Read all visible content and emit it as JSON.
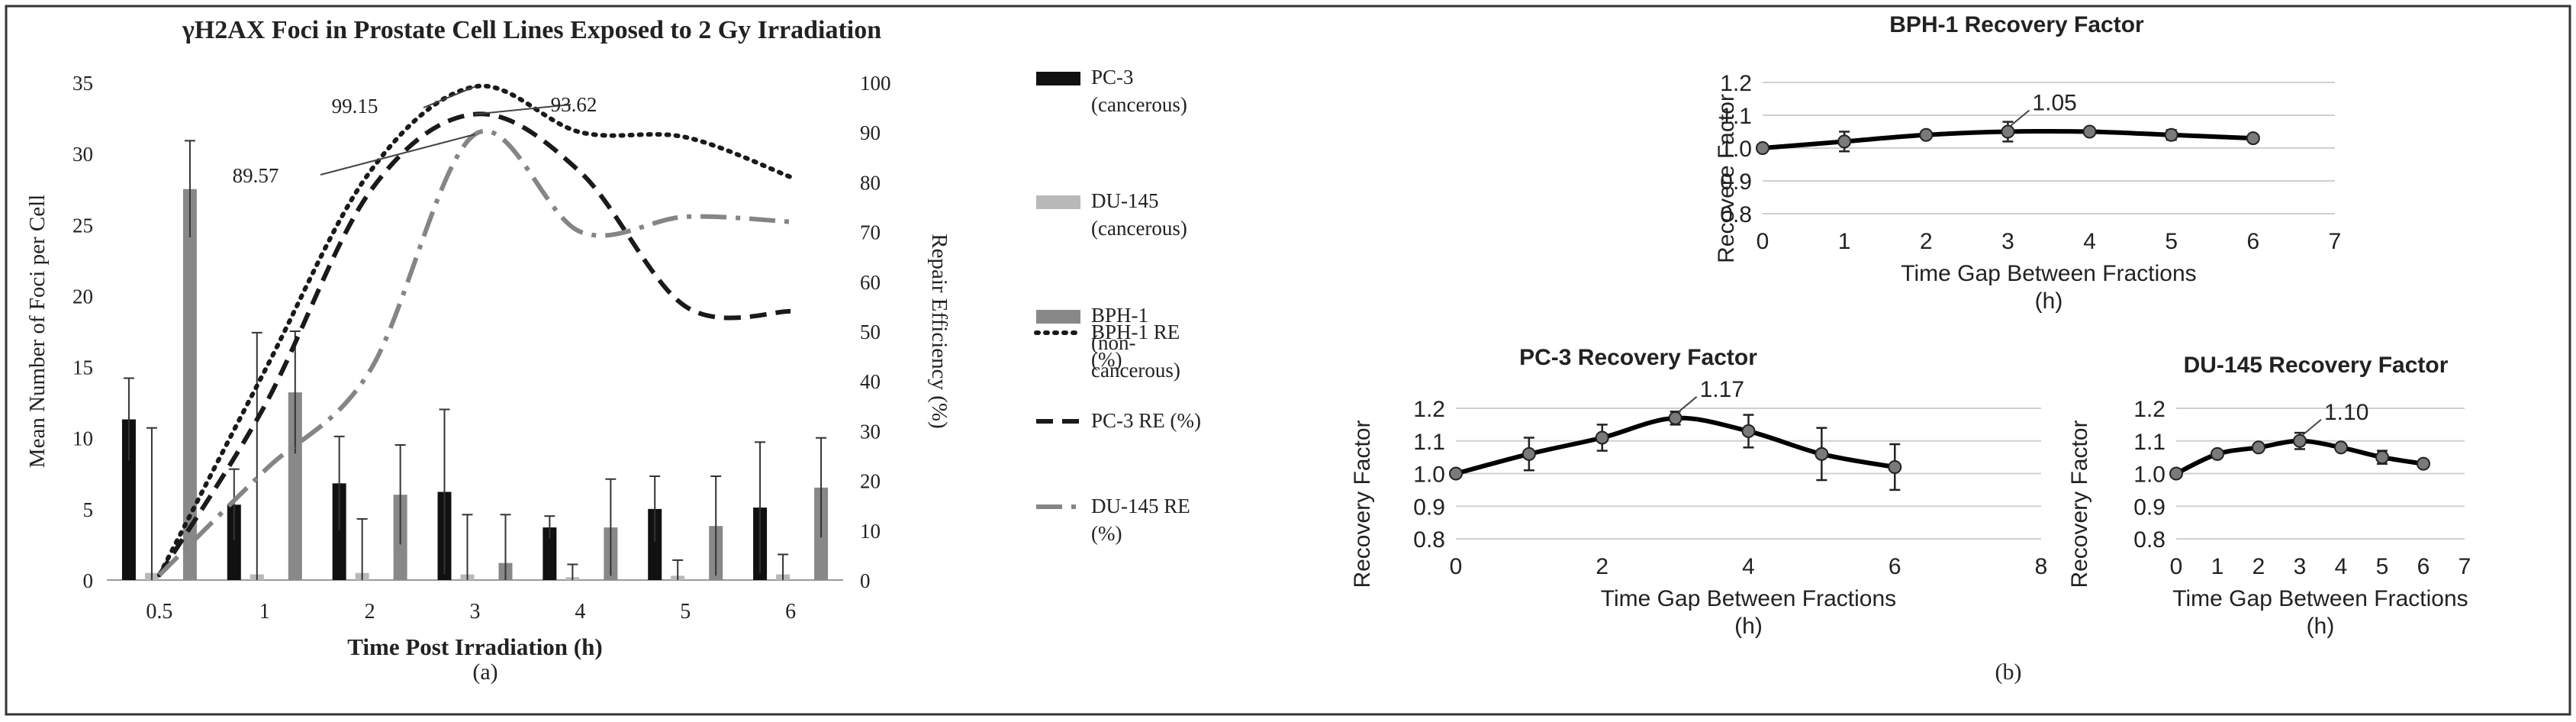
{
  "figure": {
    "panel_a_caption": "(a)",
    "panel_b_caption": "(b)"
  },
  "colors": {
    "pc3": "#111111",
    "du145": "#b9b9b9",
    "bph1": "#888888",
    "grid": "#d0d0d0",
    "ink": "#222222",
    "marker": "#7a7a7a"
  },
  "chart_data": [
    {
      "id": "panel-a",
      "type": "bar",
      "title": "γH2AX Foci in Prostate Cell Lines Exposed to 2 Gy Irradiation",
      "xlabel": "Time Post Irradiation (h)",
      "ylabel": "Mean Number of Foci per Cell",
      "y2label": "Repair Efficiency (%)",
      "categories": [
        "0.5",
        "1",
        "2",
        "3",
        "4",
        "5",
        "6"
      ],
      "ylim": [
        0,
        35
      ],
      "yticks": [
        "0",
        "5",
        "10",
        "15",
        "20",
        "25",
        "30",
        "35"
      ],
      "y2lim": [
        0,
        100
      ],
      "y2ticks": [
        "0",
        "10",
        "20",
        "30",
        "40",
        "50",
        "60",
        "70",
        "80",
        "90",
        "100"
      ],
      "bar_series": [
        {
          "name": "PC-3 (cancerous)",
          "legend_lines": [
            "PC-3",
            "(cancerous)"
          ],
          "color_key": "pc3",
          "values": [
            11.3,
            5.3,
            6.8,
            6.2,
            3.7,
            5.0,
            5.1
          ],
          "errors": [
            2.9,
            2.5,
            3.3,
            5.8,
            0.8,
            2.3,
            4.6
          ]
        },
        {
          "name": "DU-145 (cancerous)",
          "legend_lines": [
            "DU-145",
            "(cancerous)"
          ],
          "color_key": "du145",
          "values": [
            0.5,
            0.4,
            0.5,
            0.4,
            0.2,
            0.3,
            0.4
          ],
          "errors": [
            10.2,
            17.0,
            3.8,
            4.2,
            0.9,
            1.1,
            1.4
          ]
        },
        {
          "name": "BPH-1 (non-cancerous)",
          "legend_lines": [
            "BPH-1",
            "(non-",
            "cancerous)"
          ],
          "color_key": "bph1",
          "values": [
            27.5,
            13.2,
            6.0,
            1.2,
            3.7,
            3.8,
            6.5
          ],
          "errors": [
            3.4,
            4.3,
            3.5,
            3.4,
            3.4,
            3.5,
            3.5
          ]
        }
      ],
      "line_series": [
        {
          "name": "BPH-1 RE (%)",
          "legend_lines": [
            "BPH-1 RE",
            "(%)"
          ],
          "style": "dotted",
          "points": [
            [
              0.5,
              1
            ],
            [
              1,
              42
            ],
            [
              2,
              82
            ],
            [
              3,
              99.15
            ],
            [
              4,
              90
            ],
            [
              5,
              89
            ],
            [
              6,
              81
            ]
          ]
        },
        {
          "name": "PC-3 RE (%)",
          "legend_lines": [
            "PC-3 RE (%)"
          ],
          "style": "dashed",
          "points": [
            [
              0.5,
              1
            ],
            [
              1,
              35
            ],
            [
              2,
              78
            ],
            [
              3,
              93.62
            ],
            [
              4,
              82
            ],
            [
              5,
              55
            ],
            [
              6,
              54
            ]
          ]
        },
        {
          "name": "DU-145 RE (%)",
          "legend_lines": [
            "DU-145 RE",
            "(%)"
          ],
          "style": "dashdot",
          "points": [
            [
              0.5,
              1
            ],
            [
              1,
              22
            ],
            [
              2,
              42
            ],
            [
              3,
              89.57
            ],
            [
              4,
              70
            ],
            [
              5,
              73
            ],
            [
              6,
              72
            ]
          ]
        }
      ],
      "annotations": [
        {
          "text": "99.15",
          "series": "BPH-1 RE (%)",
          "x": 3
        },
        {
          "text": "93.62",
          "series": "PC-3 RE (%)",
          "x": 3
        },
        {
          "text": "89.57",
          "series": "DU-145 RE (%)",
          "x": 3
        }
      ]
    },
    {
      "id": "bph1-rf",
      "type": "line",
      "title": "BPH-1 Recovery Factor",
      "xlabel_lines": [
        "Time Gap Between Fractions",
        "(h)"
      ],
      "ylabel": "Recovere Factor",
      "xlim": [
        0,
        7
      ],
      "xticks": [
        "0",
        "1",
        "2",
        "3",
        "4",
        "5",
        "6",
        "7"
      ],
      "ylim": [
        0.8,
        1.2
      ],
      "yticks": [
        "0.8",
        "0.9",
        "1.0",
        "1.1",
        "1.2"
      ],
      "x": [
        0,
        1,
        2,
        3,
        4,
        5,
        6
      ],
      "y": [
        1.0,
        1.02,
        1.04,
        1.05,
        1.05,
        1.04,
        1.03
      ],
      "errors": [
        0.005,
        0.03,
        0.01,
        0.03,
        0.005,
        0.015,
        0.01
      ],
      "peak_label": {
        "text": "1.05",
        "x": 3
      }
    },
    {
      "id": "pc3-rf",
      "type": "line",
      "title": "PC-3 Recovery Factor",
      "xlabel_lines": [
        "Time Gap Between Fractions",
        "(h)"
      ],
      "ylabel": "Recovery Factor",
      "xlim": [
        0,
        8
      ],
      "xticks": [
        "0",
        "2",
        "4",
        "6",
        "8"
      ],
      "ylim": [
        0.8,
        1.2
      ],
      "yticks": [
        "0.8",
        "0.9",
        "1.0",
        "1.1",
        "1.2"
      ],
      "x": [
        0,
        1,
        2,
        3,
        4,
        5,
        6
      ],
      "y": [
        1.0,
        1.06,
        1.11,
        1.17,
        1.13,
        1.06,
        1.02
      ],
      "errors": [
        0.005,
        0.05,
        0.04,
        0.02,
        0.05,
        0.08,
        0.07
      ],
      "peak_label": {
        "text": "1.17",
        "x": 3
      }
    },
    {
      "id": "du145-rf",
      "type": "line",
      "title": "DU-145 Recovery Factor",
      "xlabel_lines": [
        "Time Gap Between Fractions",
        "(h)"
      ],
      "ylabel": "Recovery Factor",
      "xlim": [
        0,
        7
      ],
      "xticks": [
        "0",
        "1",
        "2",
        "3",
        "4",
        "5",
        "6",
        "7"
      ],
      "ylim": [
        0.8,
        1.2
      ],
      "yticks": [
        "0.8",
        "0.9",
        "1.0",
        "1.1",
        "1.2"
      ],
      "x": [
        0,
        1,
        2,
        3,
        4,
        5,
        6
      ],
      "y": [
        1.0,
        1.06,
        1.08,
        1.1,
        1.08,
        1.05,
        1.03
      ],
      "errors": [
        0.005,
        0.01,
        0.01,
        0.025,
        0.01,
        0.02,
        0.01
      ],
      "peak_label": {
        "text": "1.10",
        "x": 3
      }
    }
  ]
}
